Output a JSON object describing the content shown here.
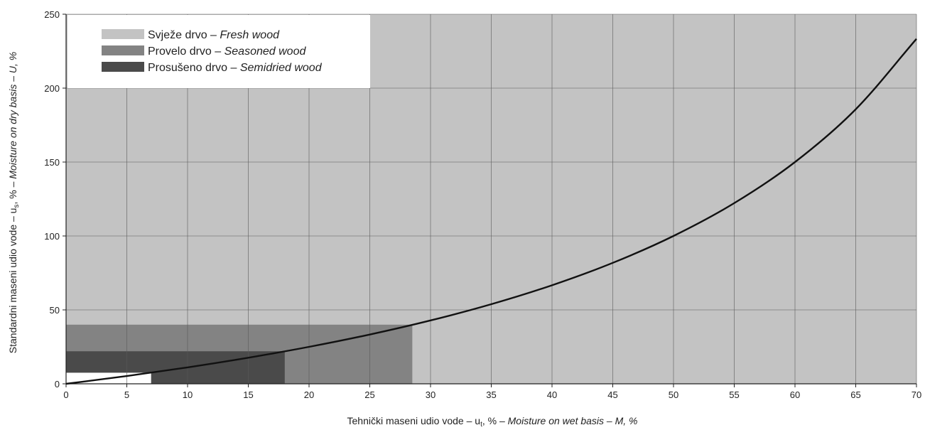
{
  "chart_data": {
    "type": "line",
    "title": "",
    "xlabel": {
      "prefix": "Tehnički maseni udio vode – u",
      "sub": "t",
      "suffix": ", % – ",
      "italic": "Moisture on wet basis – M, %"
    },
    "ylabel": {
      "prefix": "Standardni maseni udio vode – u",
      "sub": "s",
      "suffix": ", % – ",
      "italic": "Moisture on dry basis – U, %"
    },
    "xlim": [
      0,
      70
    ],
    "ylim": [
      0,
      250
    ],
    "x_ticks": [
      "0",
      "5",
      "10",
      "15",
      "20",
      "25",
      "30",
      "35",
      "40",
      "45",
      "50",
      "55",
      "60",
      "65",
      "70"
    ],
    "y_ticks": [
      "0",
      "50",
      "100",
      "150",
      "200",
      "250"
    ],
    "grid": true,
    "legend_position": "top-left",
    "regions": [
      {
        "name": "Svježe drvo",
        "name_en": "Fresh wood",
        "color": "#c3c3c3",
        "x": [
          0,
          70
        ],
        "y": [
          0,
          250
        ]
      },
      {
        "name": "Provelo drvo",
        "name_en": "Seasoned wood",
        "color": "#838383",
        "x": [
          0,
          28.5
        ],
        "y": [
          0,
          40
        ]
      },
      {
        "name": "Prosušeno drvo",
        "name_en": "Semidried wood",
        "color": "#4a4a4a",
        "x": [
          0,
          18
        ],
        "y": [
          0,
          22
        ]
      }
    ],
    "blank_areas": [
      {
        "x": [
          0,
          7
        ],
        "y": [
          0,
          7.5
        ]
      }
    ],
    "series": [
      {
        "formula": "U = 100·M/(100−M)",
        "color": "#111111",
        "x": [
          0,
          5,
          10,
          15,
          20,
          25,
          30,
          35,
          40,
          45,
          50,
          55,
          60,
          65,
          70
        ],
        "y": [
          0,
          5.26,
          11.11,
          17.65,
          25,
          33.33,
          42.86,
          53.85,
          66.67,
          81.82,
          100,
          122.22,
          150,
          185.71,
          233.33
        ]
      }
    ]
  }
}
